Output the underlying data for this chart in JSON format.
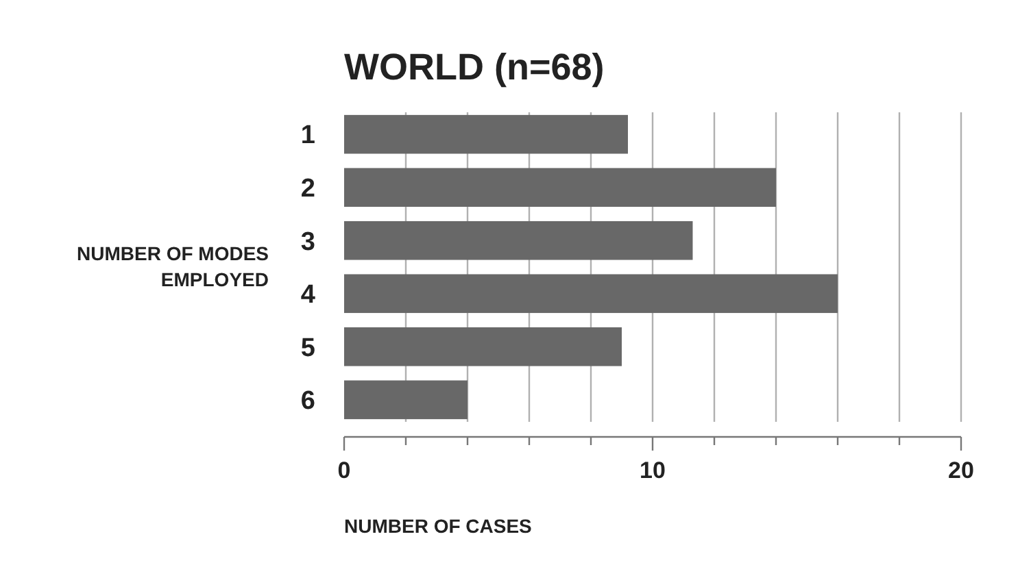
{
  "chart_data": {
    "type": "bar",
    "orientation": "horizontal",
    "title": "WORLD (n=68)",
    "xlabel": "NUMBER OF CASES",
    "ylabel": "NUMBER OF MODES\nEMPLOYED",
    "categories": [
      "1",
      "2",
      "3",
      "4",
      "5",
      "6"
    ],
    "values": [
      9.2,
      14,
      11.3,
      16,
      9,
      4
    ],
    "color": "#686868",
    "xlim": [
      0,
      20
    ],
    "xticks": [
      0,
      {
        "value": 2,
        "label": null
      },
      {
        "value": 4,
        "label": null
      },
      {
        "value": 6,
        "label": null
      },
      {
        "value": 8,
        "label": null
      },
      10,
      {
        "value": 12,
        "label": null
      },
      {
        "value": 14,
        "label": null
      },
      {
        "value": 16,
        "label": null
      },
      {
        "value": 18,
        "label": null
      },
      20
    ],
    "grid": "x"
  }
}
